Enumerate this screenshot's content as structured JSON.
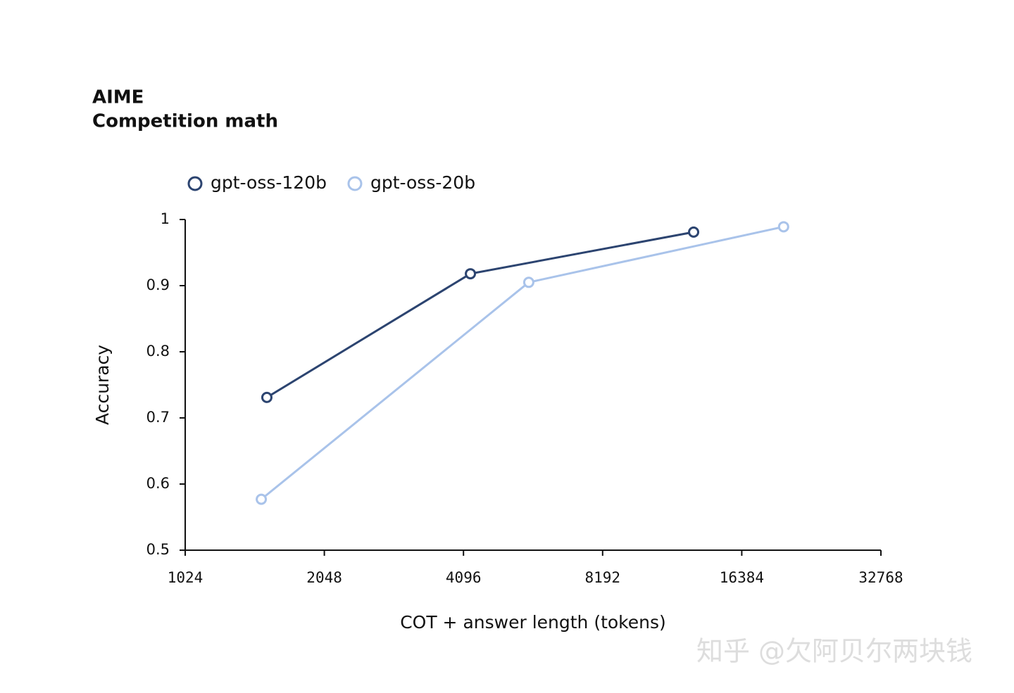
{
  "chart_data": {
    "type": "line",
    "title": "AIME",
    "subtitle": "Competition math",
    "x_label": "COT + answer length (tokens)",
    "y_label": "Accuracy",
    "xscale": "log2",
    "xlim": [
      1024,
      32768
    ],
    "xticks": [
      1024,
      2048,
      4096,
      8192,
      16384,
      32768
    ],
    "ylim": [
      0.5,
      1
    ],
    "yticks": [
      0.5,
      0.6,
      0.7,
      0.8,
      0.9,
      1
    ],
    "legend": "top-left",
    "series": [
      {
        "name": "gpt-oss-120b",
        "color": "#2c4470",
        "x": [
          1538,
          4240,
          12890
        ],
        "values": [
          0.731,
          0.918,
          0.981
        ]
      },
      {
        "name": "gpt-oss-20b",
        "color": "#a9c3ea",
        "x": [
          1496,
          5670,
          20180
        ],
        "values": [
          0.577,
          0.905,
          0.989
        ]
      }
    ]
  },
  "watermark": "知乎 @欠阿贝尔两块钱"
}
